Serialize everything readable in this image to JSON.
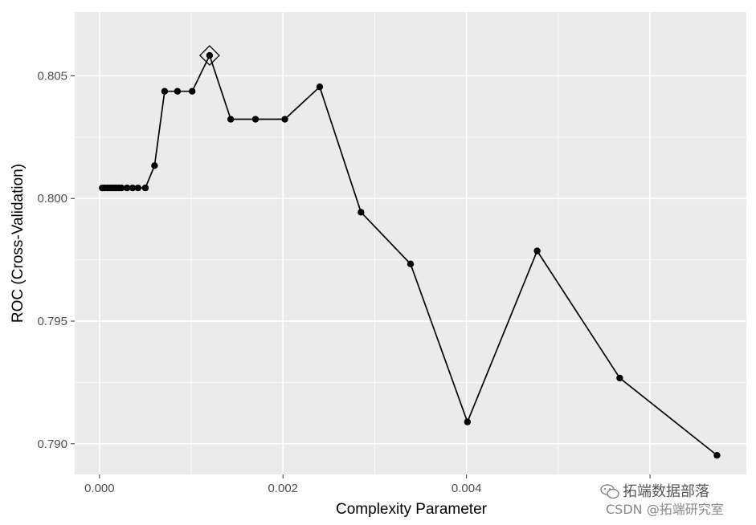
{
  "chart_data": {
    "type": "line",
    "title": "",
    "xlabel": "Complexity Parameter",
    "ylabel": "ROC (Cross-Validation)",
    "xlim": [
      -0.00027,
      0.00705
    ],
    "ylim": [
      0.78875,
      0.8076
    ],
    "xticks": [
      0.0,
      0.002,
      0.004,
      0.006
    ],
    "xtick_labels": [
      "0.000",
      "0.002",
      "0.004",
      ""
    ],
    "yticks": [
      0.79,
      0.795,
      0.8,
      0.805
    ],
    "ytick_labels": [
      "0.790",
      "0.795",
      "0.800",
      "0.805"
    ],
    "grid": true,
    "series": [
      {
        "x": [
          3e-05,
          6e-05,
          9e-05,
          0.00012,
          0.00015,
          0.00018,
          0.00021,
          0.00024,
          0.0003,
          0.00036,
          0.00042,
          0.0005,
          0.0006,
          0.00071,
          0.00085,
          0.00101,
          0.0012,
          0.00143,
          0.0017,
          0.00202,
          0.0024,
          0.00285,
          0.00339,
          0.00401,
          0.00477,
          0.00567,
          0.00673
        ],
        "y": [
          0.80043,
          0.80043,
          0.80043,
          0.80043,
          0.80043,
          0.80043,
          0.80043,
          0.80043,
          0.80043,
          0.80043,
          0.80043,
          0.80043,
          0.80134,
          0.80437,
          0.80437,
          0.80437,
          0.80583,
          0.80323,
          0.80323,
          0.80323,
          0.80455,
          0.79944,
          0.79733,
          0.79089,
          0.79786,
          0.79268,
          0.78953
        ]
      }
    ],
    "best": {
      "x": 0.0012,
      "y": 0.80583
    }
  },
  "watermark": {
    "line1": "拓端数据部落",
    "line2": "CSDN @拓端研究室"
  },
  "colors": {
    "panel": "#ebebeb",
    "grid_major": "#ffffff",
    "series": "#000000"
  }
}
